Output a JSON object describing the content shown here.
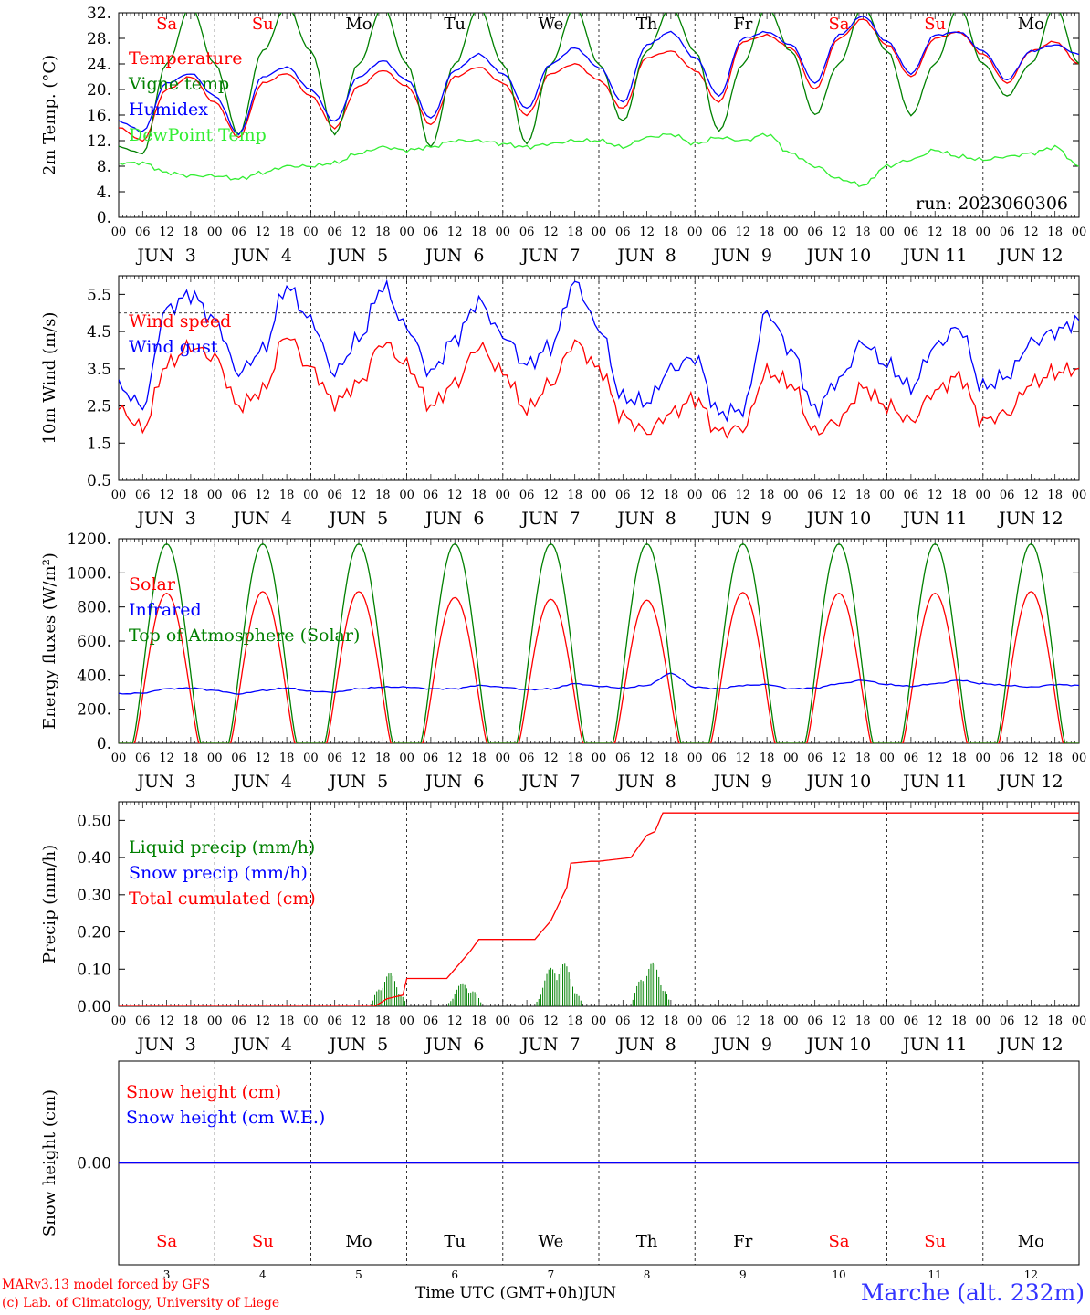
{
  "colors": {
    "temp": "#ff0000",
    "vigne": "#008000",
    "humidex": "#0000ff",
    "dew": "#33ee33",
    "wind": "#ff0000",
    "gust": "#0000ff",
    "solar": "#ff0000",
    "ir": "#0000ff",
    "toa": "#008000",
    "liquid": "#008000",
    "snowp": "#0000ff",
    "cum": "#ff0000",
    "snowh": "#ff0000",
    "snowwe": "#0000ff",
    "weekend": "#ff0000"
  },
  "x_axis": {
    "hour_ticks": [
      "00",
      "06",
      "12",
      "18"
    ],
    "day_labels": [
      "JUN  3",
      "JUN  4",
      "JUN  5",
      "JUN  6",
      "JUN  7",
      "JUN  8",
      "JUN  9",
      "JUN 10",
      "JUN 11",
      "JUN 12"
    ],
    "weekdays": [
      "Sa",
      "Su",
      "Mo",
      "Tu",
      "We",
      "Th",
      "Fr",
      "Sa",
      "Su",
      "Mo"
    ],
    "weekend_flags": [
      true,
      true,
      false,
      false,
      false,
      false,
      false,
      true,
      true,
      false
    ],
    "day_numbers": [
      "3",
      "4",
      "5",
      "6",
      "7",
      "8",
      "9",
      "10",
      "11",
      "12"
    ]
  },
  "chart_data": [
    {
      "type": "line",
      "ylabel": "2m Temp. (°C)",
      "yticks": [
        "0.",
        "4.",
        "8.",
        "12.",
        "16.",
        "20.",
        "24.",
        "28.",
        "32."
      ],
      "ylim": [
        0,
        32
      ],
      "x_unit": "hours since JUN 3 00 UTC",
      "xlim": [
        0,
        240
      ],
      "annotation": "run: 2023060306",
      "series": [
        {
          "name": "Temperature",
          "color_key": "temp",
          "x_step": 6,
          "values": [
            14,
            12,
            20,
            22,
            18,
            12.5,
            21,
            22.5,
            19,
            14,
            20.5,
            23,
            20.5,
            14.5,
            22,
            23.5,
            21,
            16,
            22.5,
            24,
            21.5,
            17,
            25,
            26,
            23,
            18,
            27.5,
            28.5,
            26.5,
            20,
            28,
            31,
            27,
            22,
            28,
            29,
            25.5,
            21,
            26,
            27.5,
            24,
            20
          ]
        },
        {
          "name": "Vigne temp",
          "color_key": "vigne",
          "x_step": 6,
          "values": [
            11,
            10,
            24,
            33,
            24,
            13,
            26,
            33,
            26,
            13,
            24,
            33,
            24,
            11,
            24,
            33,
            24,
            11.5,
            24,
            33,
            24,
            15,
            26,
            33,
            26,
            13.5,
            24,
            33,
            26,
            16,
            24,
            33,
            26,
            16,
            24,
            33,
            24,
            19,
            24,
            33,
            24,
            15
          ]
        },
        {
          "name": "Humidex",
          "color_key": "humidex",
          "x_step": 6,
          "values": [
            15,
            13.5,
            21,
            22.5,
            19,
            13,
            22,
            23.5,
            20,
            15,
            22,
            24.5,
            21.5,
            15.5,
            23,
            25.5,
            22.5,
            17,
            24,
            26.5,
            23.5,
            18,
            27,
            29,
            25,
            19,
            28,
            29,
            27,
            21,
            28.5,
            31.5,
            27.5,
            22.5,
            28.5,
            29,
            26,
            21.5,
            26,
            27,
            25.5,
            20
          ]
        },
        {
          "name": "DewPoint Temp",
          "color_key": "dew",
          "x_step": 6,
          "values": [
            8.5,
            8.5,
            7,
            6.5,
            6.5,
            6,
            7,
            8,
            8,
            8.5,
            10,
            11,
            10.5,
            11,
            12,
            12,
            11.5,
            11,
            11.5,
            12,
            12,
            11,
            12.5,
            13,
            11.5,
            12.5,
            12,
            13,
            10,
            8,
            6,
            5,
            8,
            9,
            10.5,
            9.5,
            9,
            9.5,
            10,
            11,
            8,
            6
          ]
        }
      ]
    },
    {
      "type": "line",
      "ylabel": "10m Wind (m/s)",
      "yticks": [
        "0.5",
        "1.5",
        "2.5",
        "3.5",
        "4.5",
        "5.5"
      ],
      "ylim": [
        0.5,
        6
      ],
      "ref_line": 5,
      "x_unit": "hours since JUN 3 00 UTC",
      "xlim": [
        0,
        240
      ],
      "series": [
        {
          "name": "Wind speed",
          "color_key": "wind",
          "x_step": 6,
          "values": [
            2.4,
            1.9,
            3.6,
            4.1,
            3.8,
            2.5,
            2.9,
            4.4,
            3.5,
            2.6,
            3.1,
            4.2,
            3.6,
            2.5,
            3.1,
            4.1,
            3.4,
            2.4,
            3.1,
            4.2,
            3.5,
            2.2,
            1.8,
            2.3,
            2.7,
            1.8,
            1.9,
            3.4,
            3.1,
            1.8,
            2.1,
            3.0,
            2.5,
            2.1,
            2.9,
            3.3,
            2.1,
            2.3,
            3.1,
            3.4,
            3.5,
            1.4
          ]
        },
        {
          "name": "Wind gust",
          "color_key": "gust",
          "x_step": 6,
          "values": [
            3.0,
            2.5,
            5.1,
            5.5,
            4.8,
            3.4,
            4.0,
            5.7,
            4.8,
            3.4,
            4.3,
            5.7,
            4.6,
            3.4,
            4.3,
            5.3,
            4.4,
            3.6,
            4.1,
            5.8,
            4.6,
            2.7,
            2.6,
            3.5,
            3.8,
            2.3,
            2.4,
            5.0,
            4.0,
            2.4,
            3.2,
            4.2,
            3.6,
            3.0,
            4.1,
            4.6,
            3.0,
            3.3,
            4.2,
            4.5,
            4.8,
            1.9
          ]
        }
      ]
    },
    {
      "type": "line",
      "ylabel": "Energy fluxes (W/m²)",
      "yticks": [
        "0.",
        "200.",
        "400.",
        "600.",
        "800.",
        "1000.",
        "1200."
      ],
      "ylim": [
        0,
        1200
      ],
      "x_unit": "hours since JUN 3 00 UTC",
      "xlim": [
        0,
        240
      ],
      "series": [
        {
          "name": "Solar",
          "color_key": "solar",
          "day_peaks": [
            880,
            890,
            890,
            855,
            845,
            840,
            885,
            880,
            880,
            890
          ]
        },
        {
          "name": "Infrared",
          "color_key": "ir",
          "x_step": 6,
          "values": [
            290,
            295,
            320,
            325,
            310,
            290,
            310,
            325,
            305,
            300,
            320,
            330,
            330,
            320,
            320,
            340,
            330,
            315,
            320,
            350,
            335,
            325,
            340,
            410,
            330,
            320,
            340,
            345,
            320,
            325,
            350,
            370,
            345,
            335,
            350,
            370,
            350,
            340,
            330,
            345,
            340,
            305
          ]
        },
        {
          "name": "Top of Atmosphere (Solar)",
          "color_key": "toa",
          "day_peaks": [
            1170,
            1170,
            1170,
            1170,
            1170,
            1170,
            1170,
            1170,
            1170,
            1170
          ]
        }
      ]
    },
    {
      "type": "line",
      "ylabel": "Precip (mm/h)",
      "yticks": [
        "0.00",
        "0.10",
        "0.20",
        "0.30",
        "0.40",
        "0.50"
      ],
      "ylim": [
        0,
        0.55
      ],
      "x_unit": "hours since JUN 3 00 UTC",
      "xlim": [
        0,
        240
      ],
      "series": [
        {
          "name": "Liquid precip (mm/h)",
          "color_key": "liquid",
          "events": [
            {
              "start": 63,
              "end": 72,
              "peak": 0.09
            },
            {
              "start": 82,
              "end": 91,
              "peak": 0.065
            },
            {
              "start": 104,
              "end": 116,
              "peak": 0.125
            },
            {
              "start": 128,
              "end": 138,
              "peak": 0.12
            }
          ]
        },
        {
          "name": "Snow precip (mm/h)",
          "color_key": "snowp",
          "values": []
        },
        {
          "name": "Total cumulated (cm)",
          "color_key": "cum",
          "x": [
            0,
            64,
            67,
            71,
            72,
            82,
            84,
            88,
            90,
            104,
            108,
            112,
            113,
            118,
            120,
            128,
            132,
            134,
            136,
            240
          ],
          "values": [
            0,
            0,
            0.02,
            0.03,
            0.075,
            0.075,
            0.1,
            0.15,
            0.18,
            0.18,
            0.23,
            0.32,
            0.385,
            0.39,
            0.39,
            0.4,
            0.46,
            0.47,
            0.52,
            0.52
          ]
        }
      ]
    },
    {
      "type": "line",
      "ylabel": "Snow height (cm)",
      "yticks": [
        "0.00"
      ],
      "ylim": [
        -1,
        1
      ],
      "x_unit": "hours since JUN 3 00 UTC",
      "xlim": [
        0,
        240
      ],
      "series": [
        {
          "name": "Snow height (cm)",
          "color_key": "snowh",
          "values": [
            0,
            0
          ]
        },
        {
          "name": "Snow height (cm W.E.)",
          "color_key": "snowwe",
          "values": [
            0,
            0
          ]
        }
      ]
    }
  ],
  "footer": {
    "model_line": "MARv3.13 model forced by GFS",
    "lab_line": "(c) Lab. of Climatology, University of Liege",
    "xlabel": "Time UTC (GMT+0h)",
    "month": "JUN",
    "station": "Marche (alt. 232m)"
  }
}
